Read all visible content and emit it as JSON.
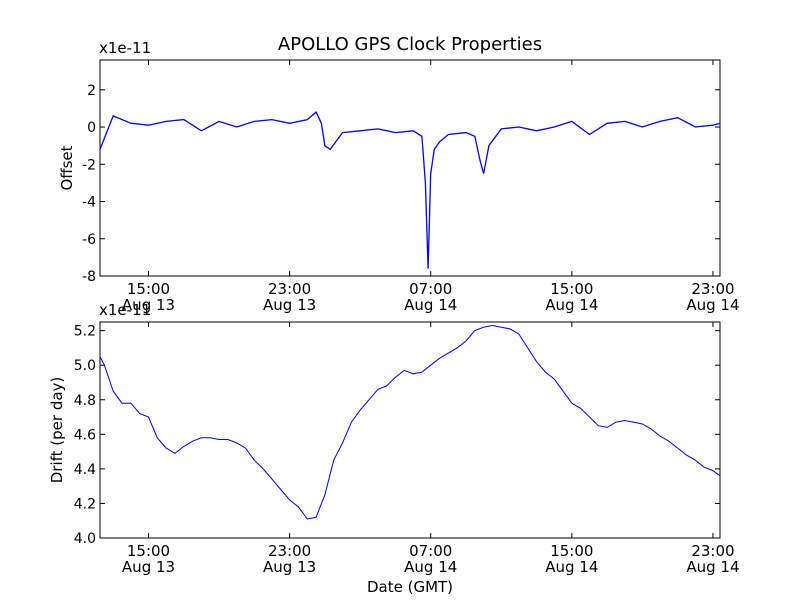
{
  "figure": {
    "title": "APOLLO GPS Clock Properties",
    "xlabel": "Date (GMT)",
    "line_color": "#0000ff"
  },
  "chart_data": [
    {
      "type": "line",
      "ylabel": "Offset",
      "scale_label": "x1e-11",
      "ylim": [
        -8,
        3.6
      ],
      "yticks": [
        "2",
        "0",
        "-2",
        "-4",
        "-6",
        "-8"
      ],
      "ytick_values": [
        2,
        0,
        -2,
        -4,
        -6,
        -8
      ],
      "xticks": [
        {
          "hours": 5,
          "label": "15:00",
          "date": "Aug 13"
        },
        {
          "hours": 13,
          "label": "23:00",
          "date": "Aug 13"
        },
        {
          "hours": 21,
          "label": "07:00",
          "date": "Aug 14"
        },
        {
          "hours": 29,
          "label": "15:00",
          "date": "Aug 14"
        },
        {
          "hours": 37,
          "label": "23:00",
          "date": "Aug 14"
        }
      ],
      "xlim_hours": [
        2.25,
        37.4
      ],
      "series": [
        {
          "color": "#0000ff",
          "x": [
            2.25,
            3,
            4,
            5,
            6,
            7,
            8,
            9,
            10,
            11,
            12,
            13,
            14,
            14.5,
            14.8,
            15,
            15.3,
            16,
            17,
            18,
            19,
            20,
            20.5,
            20.7,
            20.85,
            21,
            21.2,
            21.5,
            22,
            23,
            23.5,
            23.8,
            24,
            24.3,
            25,
            26,
            27,
            28,
            29,
            30,
            31,
            32,
            33,
            34,
            35,
            36,
            37,
            37.4
          ],
          "y": [
            -1.2,
            0.6,
            0.2,
            0.1,
            0.3,
            0.4,
            -0.2,
            0.3,
            0.0,
            0.3,
            0.4,
            0.2,
            0.4,
            0.8,
            0.2,
            -1.0,
            -1.2,
            -0.3,
            -0.2,
            -0.1,
            -0.3,
            -0.2,
            -0.5,
            -3.0,
            -7.6,
            -2.5,
            -1.2,
            -0.8,
            -0.4,
            -0.3,
            -0.5,
            -1.8,
            -2.5,
            -1.0,
            -0.1,
            0.0,
            -0.2,
            0.0,
            0.3,
            -0.4,
            0.2,
            0.3,
            0.0,
            0.3,
            0.5,
            0.0,
            0.1,
            0.2
          ]
        }
      ]
    },
    {
      "type": "line",
      "ylabel": "Drift (per day)",
      "scale_label": "x1e-11",
      "ylim": [
        4.0,
        5.25
      ],
      "yticks": [
        "5.2",
        "5.0",
        "4.8",
        "4.6",
        "4.4",
        "4.2",
        "4.0"
      ],
      "ytick_values": [
        5.2,
        5.0,
        4.8,
        4.6,
        4.4,
        4.2,
        4.0
      ],
      "xticks": [
        {
          "hours": 5,
          "label": "15:00",
          "date": "Aug 13"
        },
        {
          "hours": 13,
          "label": "23:00",
          "date": "Aug 13"
        },
        {
          "hours": 21,
          "label": "07:00",
          "date": "Aug 14"
        },
        {
          "hours": 29,
          "label": "15:00",
          "date": "Aug 14"
        },
        {
          "hours": 37,
          "label": "23:00",
          "date": "Aug 14"
        }
      ],
      "xlim_hours": [
        2.25,
        37.4
      ],
      "series": [
        {
          "color": "#0000ff",
          "x": [
            2.25,
            2.5,
            3,
            3.5,
            4,
            4.5,
            5,
            5.5,
            6,
            6.5,
            7,
            7.5,
            8,
            8.5,
            9,
            9.5,
            10,
            10.5,
            11,
            11.5,
            12,
            12.5,
            13,
            13.5,
            14,
            14.5,
            15,
            15.5,
            16,
            16.5,
            17,
            17.5,
            18,
            18.5,
            19,
            19.5,
            20,
            20.5,
            21,
            21.5,
            22,
            22.5,
            23,
            23.5,
            24,
            24.5,
            25,
            25.5,
            26,
            26.5,
            27,
            27.5,
            28,
            28.5,
            29,
            29.5,
            30,
            30.5,
            31,
            31.5,
            32,
            32.5,
            33,
            33.5,
            34,
            34.5,
            35,
            35.5,
            36,
            36.5,
            37,
            37.4
          ],
          "y": [
            5.05,
            5.0,
            4.85,
            4.78,
            4.78,
            4.72,
            4.7,
            4.58,
            4.52,
            4.49,
            4.53,
            4.56,
            4.58,
            4.58,
            4.57,
            4.57,
            4.55,
            4.52,
            4.45,
            4.4,
            4.34,
            4.28,
            4.22,
            4.18,
            4.11,
            4.12,
            4.25,
            4.45,
            4.55,
            4.67,
            4.74,
            4.8,
            4.86,
            4.88,
            4.93,
            4.97,
            4.95,
            4.96,
            5.0,
            5.04,
            5.07,
            5.1,
            5.14,
            5.2,
            5.22,
            5.23,
            5.22,
            5.21,
            5.18,
            5.1,
            5.02,
            4.96,
            4.92,
            4.85,
            4.78,
            4.75,
            4.7,
            4.65,
            4.64,
            4.67,
            4.68,
            4.67,
            4.66,
            4.63,
            4.59,
            4.56,
            4.52,
            4.48,
            4.45,
            4.41,
            4.39,
            4.36
          ]
        }
      ]
    }
  ]
}
